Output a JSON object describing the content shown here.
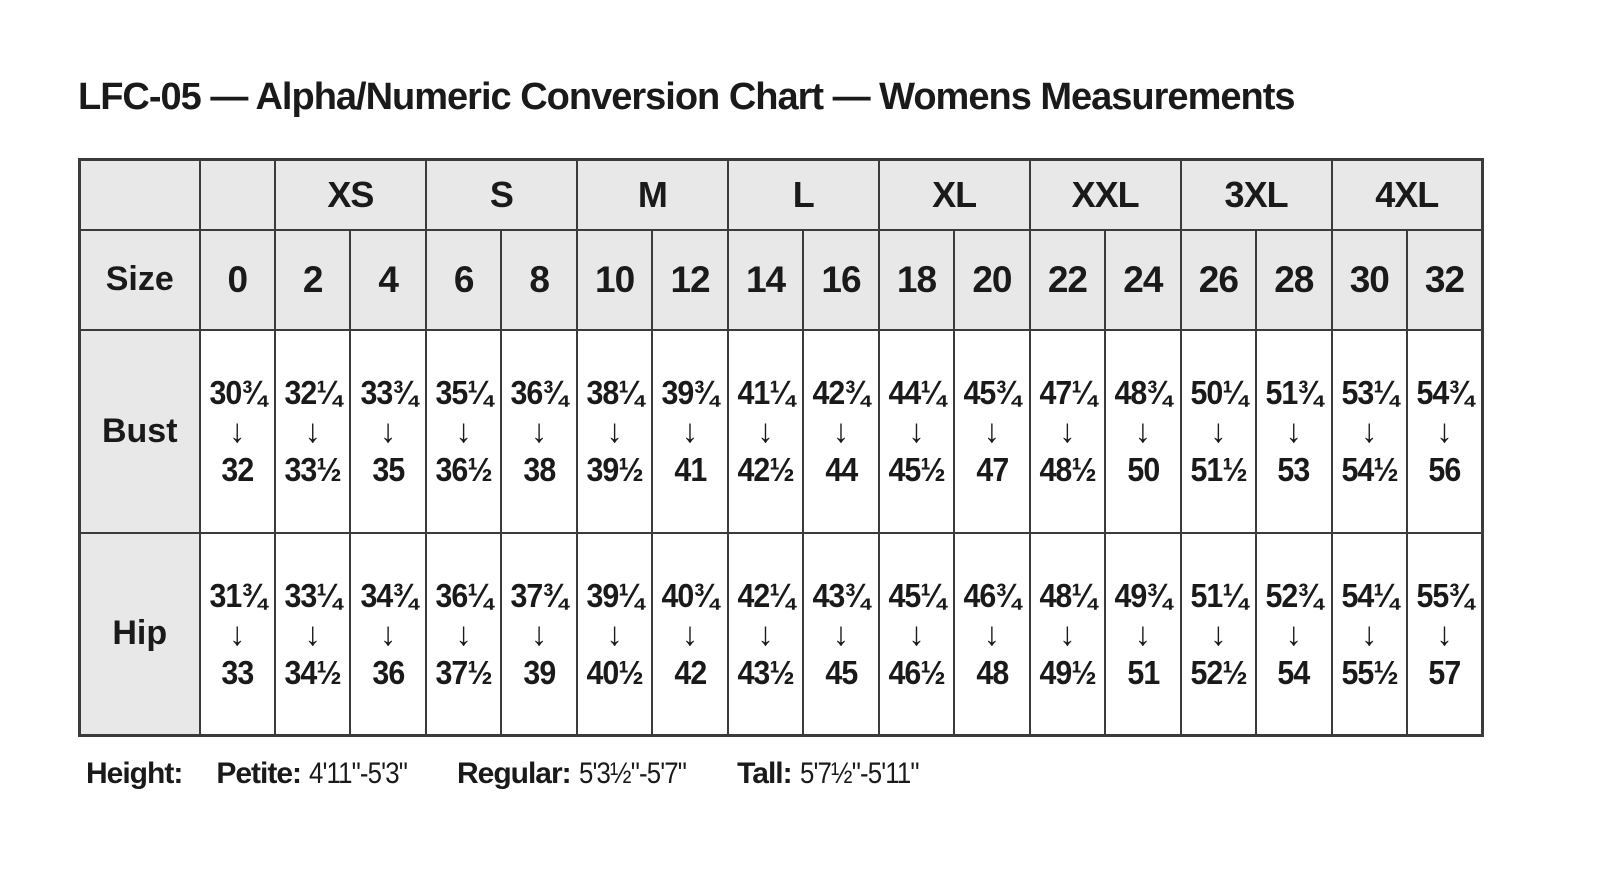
{
  "title": "LFC-05 — Alpha/Numeric Conversion Chart — Womens Measurements",
  "chart_data": {
    "type": "table",
    "alpha_header": [
      {
        "label": "",
        "span": 1
      },
      {
        "label": "",
        "span": 1
      },
      {
        "label": "XS",
        "span": 2
      },
      {
        "label": "S",
        "span": 2
      },
      {
        "label": "M",
        "span": 2
      },
      {
        "label": "L",
        "span": 2
      },
      {
        "label": "XL",
        "span": 2
      },
      {
        "label": "XXL",
        "span": 2
      },
      {
        "label": "3XL",
        "span": 2
      },
      {
        "label": "4XL",
        "span": 2
      }
    ],
    "size_row_label": "Size",
    "numeric_sizes": [
      "0",
      "2",
      "4",
      "6",
      "8",
      "10",
      "12",
      "14",
      "16",
      "18",
      "20",
      "22",
      "24",
      "26",
      "28",
      "30",
      "32"
    ],
    "measurement_rows": [
      {
        "label": "Bust",
        "ranges": [
          {
            "from": "30¾",
            "to": "32"
          },
          {
            "from": "32¼",
            "to": "33½"
          },
          {
            "from": "33¾",
            "to": "35"
          },
          {
            "from": "35¼",
            "to": "36½"
          },
          {
            "from": "36¾",
            "to": "38"
          },
          {
            "from": "38¼",
            "to": "39½"
          },
          {
            "from": "39¾",
            "to": "41"
          },
          {
            "from": "41¼",
            "to": "42½"
          },
          {
            "from": "42¾",
            "to": "44"
          },
          {
            "from": "44¼",
            "to": "45½"
          },
          {
            "from": "45¾",
            "to": "47"
          },
          {
            "from": "47¼",
            "to": "48½"
          },
          {
            "from": "48¾",
            "to": "50"
          },
          {
            "from": "50¼",
            "to": "51½"
          },
          {
            "from": "51¾",
            "to": "53"
          },
          {
            "from": "53¼",
            "to": "54½"
          },
          {
            "from": "54¾",
            "to": "56"
          }
        ]
      },
      {
        "label": "Hip",
        "ranges": [
          {
            "from": "31¾",
            "to": "33"
          },
          {
            "from": "33¼",
            "to": "34½"
          },
          {
            "from": "34¾",
            "to": "36"
          },
          {
            "from": "36¼",
            "to": "37½"
          },
          {
            "from": "37¾",
            "to": "39"
          },
          {
            "from": "39¼",
            "to": "40½"
          },
          {
            "from": "40¾",
            "to": "42"
          },
          {
            "from": "42¼",
            "to": "43½"
          },
          {
            "from": "43¾",
            "to": "45"
          },
          {
            "from": "45¼",
            "to": "46½"
          },
          {
            "from": "46¾",
            "to": "48"
          },
          {
            "from": "48¼",
            "to": "49½"
          },
          {
            "from": "49¾",
            "to": "51"
          },
          {
            "from": "51¼",
            "to": "52½"
          },
          {
            "from": "52¾",
            "to": "54"
          },
          {
            "from": "54¼",
            "to": "55½"
          },
          {
            "from": "55¾",
            "to": "57"
          }
        ]
      }
    ]
  },
  "icons": {
    "down_arrow": "↓"
  },
  "footer": {
    "heading": "Height:",
    "segments": [
      {
        "label": "Petite:",
        "value": "4'11\"-5'3\""
      },
      {
        "label": "Regular:",
        "value": "5'3½\"-5'7\""
      },
      {
        "label": "Tall:",
        "value": "5'7½\"-5'11\""
      }
    ]
  },
  "colors": {
    "header_fill": "#e8e8e8",
    "border": "#3b3b3b",
    "text": "#1a1a1a",
    "background": "#ffffff"
  }
}
